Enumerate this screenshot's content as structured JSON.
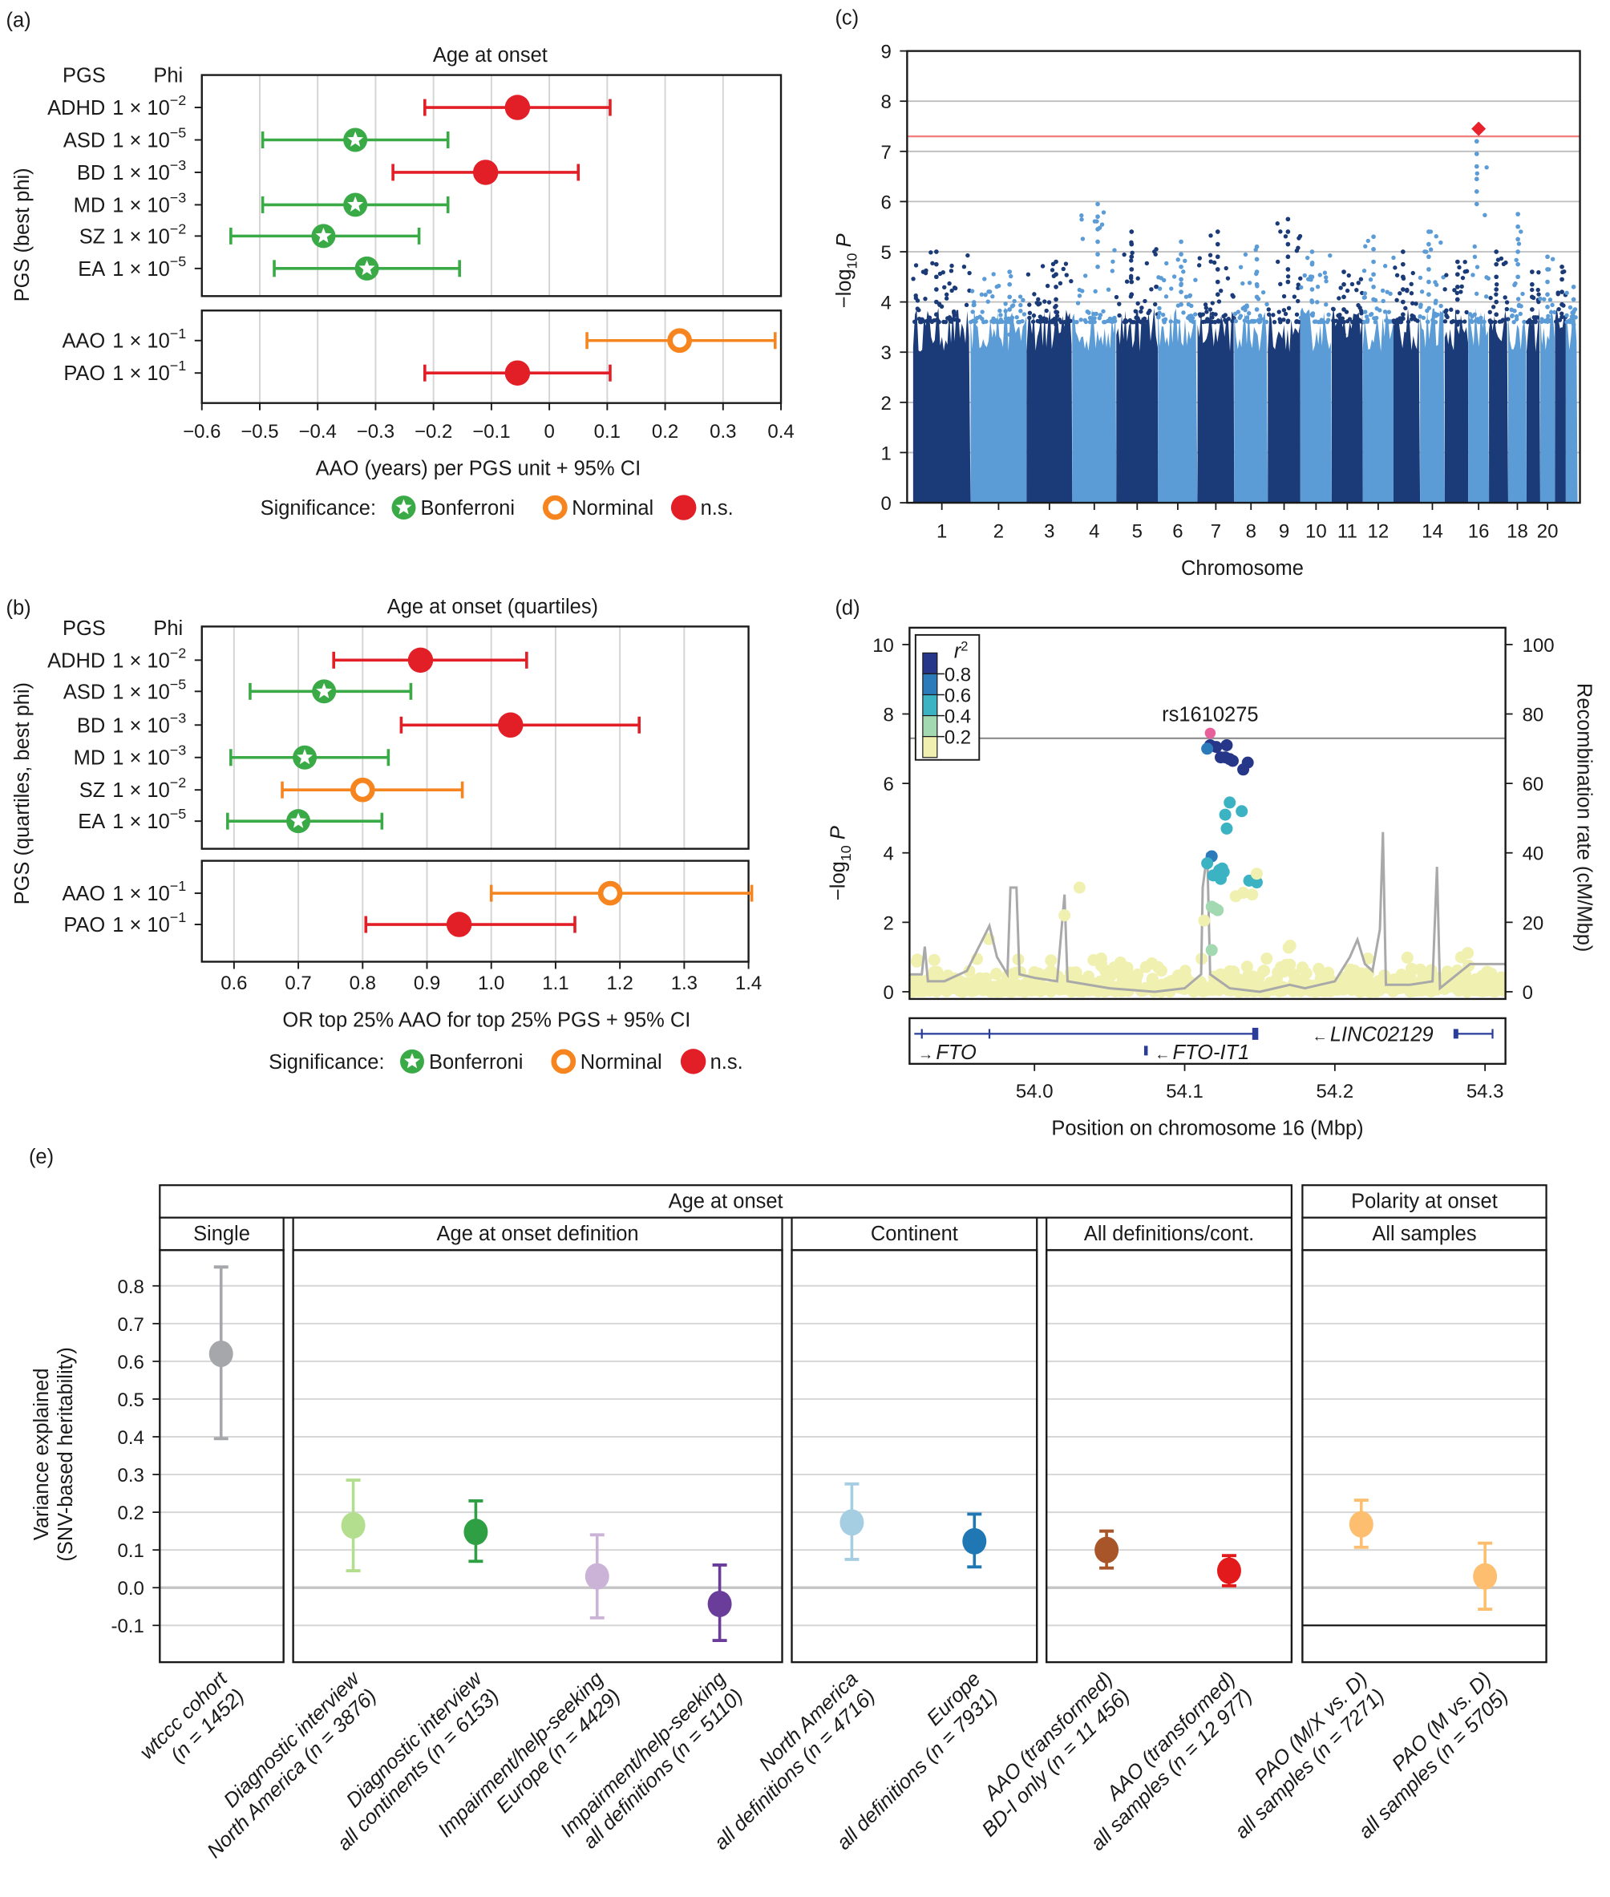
{
  "panel_labels": {
    "a": "(a)",
    "b": "(b)",
    "c": "(c)",
    "d": "(d)",
    "e": "(e)"
  },
  "significance_colors": {
    "Bonferroni": "#3aaa47",
    "Norminal": "#f7851f",
    "n.s.": "#e21f26"
  },
  "chart_data": [
    {
      "id": "a",
      "type": "forest",
      "title": "Age at onset",
      "header_pgs": "PGS",
      "header_phi": "Phi",
      "ylabel": "PGS (best phi)",
      "xlabel": "AAO (years) per PGS unit + 95% CI",
      "xlim": [
        -0.6,
        0.4
      ],
      "xticks": [
        -0.6,
        -0.5,
        -0.4,
        -0.3,
        -0.2,
        -0.1,
        0,
        0.1,
        0.2,
        0.3,
        0.4
      ],
      "xtick_labels": [
        "−0.6",
        "−0.5",
        "−0.4",
        "−0.3",
        "−0.2",
        "−0.1",
        "0",
        "0.1",
        "0.2",
        "0.3",
        "0.4"
      ],
      "grid": true,
      "groups": [
        {
          "rows": [
            {
              "pgs": "ADHD",
              "phi": "1 × 10",
              "exp": "−2",
              "estimate": -0.055,
              "ci_low": -0.215,
              "ci_high": 0.105,
              "significance": "n.s."
            },
            {
              "pgs": "ASD",
              "phi": "1 × 10",
              "exp": "−5",
              "estimate": -0.335,
              "ci_low": -0.495,
              "ci_high": -0.175,
              "significance": "Bonferroni"
            },
            {
              "pgs": "BD",
              "phi": "1 × 10",
              "exp": "−3",
              "estimate": -0.11,
              "ci_low": -0.27,
              "ci_high": 0.05,
              "significance": "n.s."
            },
            {
              "pgs": "MD",
              "phi": "1 × 10",
              "exp": "−3",
              "estimate": -0.335,
              "ci_low": -0.495,
              "ci_high": -0.175,
              "significance": "Bonferroni"
            },
            {
              "pgs": "SZ",
              "phi": "1 × 10",
              "exp": "−2",
              "estimate": -0.39,
              "ci_low": -0.55,
              "ci_high": -0.225,
              "significance": "Bonferroni"
            },
            {
              "pgs": "EA",
              "phi": "1 × 10",
              "exp": "−5",
              "estimate": -0.315,
              "ci_low": -0.475,
              "ci_high": -0.155,
              "significance": "Bonferroni"
            }
          ]
        },
        {
          "rows": [
            {
              "pgs": "AAO",
              "phi": "1 × 10",
              "exp": "−1",
              "estimate": 0.225,
              "ci_low": 0.065,
              "ci_high": 0.39,
              "significance": "Norminal"
            },
            {
              "pgs": "PAO",
              "phi": "1 × 10",
              "exp": "−1",
              "estimate": -0.055,
              "ci_low": -0.215,
              "ci_high": 0.105,
              "significance": "n.s."
            }
          ]
        }
      ],
      "legend": {
        "title": "Significance:",
        "placement": "bottom",
        "items": [
          "Bonferroni",
          "Norminal",
          "n.s."
        ]
      }
    },
    {
      "id": "b",
      "type": "forest",
      "title": "Age at onset (quartiles)",
      "header_pgs": "PGS",
      "header_phi": "Phi",
      "ylabel": "PGS (quartiles, best phi)",
      "xlabel": "OR top 25% AAO for top 25% PGS + 95% CI",
      "xlim": [
        0.55,
        1.4
      ],
      "xticks": [
        0.6,
        0.7,
        0.8,
        0.9,
        1.0,
        1.1,
        1.2,
        1.3,
        1.4
      ],
      "xtick_labels": [
        "0.6",
        "0.7",
        "0.8",
        "0.9",
        "1.0",
        "1.1",
        "1.2",
        "1.3",
        "1.4"
      ],
      "grid": true,
      "groups": [
        {
          "rows": [
            {
              "pgs": "ADHD",
              "phi": "1 × 10",
              "exp": "−2",
              "estimate": 0.89,
              "ci_low": 0.755,
              "ci_high": 1.055,
              "significance": "n.s."
            },
            {
              "pgs": "ASD",
              "phi": "1 × 10",
              "exp": "−5",
              "estimate": 0.74,
              "ci_low": 0.625,
              "ci_high": 0.875,
              "significance": "Bonferroni"
            },
            {
              "pgs": "BD",
              "phi": "1 × 10",
              "exp": "−3",
              "estimate": 1.03,
              "ci_low": 0.86,
              "ci_high": 1.23,
              "significance": "n.s."
            },
            {
              "pgs": "MD",
              "phi": "1 × 10",
              "exp": "−3",
              "estimate": 0.71,
              "ci_low": 0.595,
              "ci_high": 0.84,
              "significance": "Bonferroni"
            },
            {
              "pgs": "SZ",
              "phi": "1 × 10",
              "exp": "−2",
              "estimate": 0.8,
              "ci_low": 0.675,
              "ci_high": 0.955,
              "significance": "Norminal"
            },
            {
              "pgs": "EA",
              "phi": "1 × 10",
              "exp": "−5",
              "estimate": 0.7,
              "ci_low": 0.59,
              "ci_high": 0.83,
              "significance": "Bonferroni"
            }
          ]
        },
        {
          "rows": [
            {
              "pgs": "AAO",
              "phi": "1 × 10",
              "exp": "−1",
              "estimate": 1.185,
              "ci_low": 1.0,
              "ci_high": 1.405,
              "significance": "Norminal"
            },
            {
              "pgs": "PAO",
              "phi": "1 × 10",
              "exp": "−1",
              "estimate": 0.95,
              "ci_low": 0.805,
              "ci_high": 1.13,
              "significance": "n.s."
            }
          ]
        }
      ],
      "legend": {
        "title": "Significance:",
        "placement": "bottom",
        "items": [
          "Bonferroni",
          "Norminal",
          "n.s."
        ]
      }
    },
    {
      "id": "c",
      "type": "scatter",
      "subtype": "manhattan",
      "ylabel": {
        "main": "−log",
        "sub": "10",
        "var": " P"
      },
      "xlabel": "Chromosome",
      "ylim": [
        0,
        9
      ],
      "yticks": [
        0,
        1,
        2,
        3,
        4,
        5,
        6,
        7,
        8,
        9
      ],
      "ytick_labels": [
        "0",
        "1",
        "2",
        "3",
        "4",
        "5",
        "6",
        "7",
        "8",
        "9"
      ],
      "grid": true,
      "xtick_chromosomes": [
        1,
        2,
        3,
        4,
        5,
        6,
        7,
        8,
        9,
        10,
        11,
        12,
        14,
        16,
        18,
        20
      ],
      "xtick_labels": [
        "1",
        "2",
        "3",
        "4",
        "5",
        "6",
        "7",
        "8",
        "9",
        "10",
        "11",
        "12",
        "14",
        "16",
        "18",
        "20"
      ],
      "chromosome_peaks": [
        5.0,
        4.6,
        4.8,
        5.95,
        5.4,
        5.2,
        5.4,
        5.1,
        5.65,
        5.0,
        4.6,
        5.3,
        5.0,
        5.4,
        4.8,
        7.2,
        5.0,
        5.75,
        4.6,
        4.9,
        4.7,
        4.3
      ],
      "genome_wide_threshold": 7.3,
      "top_hit": {
        "chromosome": 16,
        "value": 7.45
      },
      "colors": {
        "odd": "#1b3a78",
        "even": "#5b9bd6",
        "threshold": "#f08080",
        "top_hit": "#e8212b"
      }
    },
    {
      "id": "d",
      "type": "scatter",
      "subtype": "regional",
      "ylabel": {
        "main": "−log",
        "sub": "10",
        "var": " P"
      },
      "y2label": "Recombination rate (cM/Mbp)",
      "xlabel": "Position on chromosome 16 (Mbp)",
      "xlim": [
        53.917,
        54.314
      ],
      "xticks": [
        54.0,
        54.1,
        54.2,
        54.3
      ],
      "xtick_labels": [
        "54.0",
        "54.1",
        "54.2",
        "54.3"
      ],
      "ylim": [
        0,
        10
      ],
      "yticks": [
        0,
        2,
        4,
        6,
        8,
        10
      ],
      "ytick_labels": [
        "0",
        "2",
        "4",
        "6",
        "8",
        "10"
      ],
      "y2lim": [
        0,
        100
      ],
      "y2ticks": [
        0,
        20,
        40,
        60,
        80,
        100
      ],
      "y2tick_labels": [
        "0",
        "20",
        "40",
        "60",
        "80",
        "100"
      ],
      "threshold": 7.3,
      "lead_snp": {
        "label": "rs1610275",
        "position": 54.117,
        "value": 7.45,
        "color": "#e8609a"
      },
      "legend": {
        "title": "r",
        "title_sup": "2",
        "placement": "top-left",
        "tick_labels": [
          "0.8",
          "0.6",
          "0.4",
          "0.2"
        ],
        "colors": [
          "#26378a",
          "#2b7bba",
          "#3bb3c3",
          "#a3d9b1",
          "#f0f0b0"
        ]
      },
      "ld_points": [
        {
          "position": 54.117,
          "value": 7.1,
          "r2_bin": 0
        },
        {
          "position": 54.121,
          "value": 7.05,
          "r2_bin": 0
        },
        {
          "position": 54.128,
          "value": 7.1,
          "r2_bin": 0
        },
        {
          "position": 54.124,
          "value": 6.75,
          "r2_bin": 0
        },
        {
          "position": 54.127,
          "value": 6.75,
          "r2_bin": 0
        },
        {
          "position": 54.13,
          "value": 6.7,
          "r2_bin": 0
        },
        {
          "position": 54.132,
          "value": 6.65,
          "r2_bin": 0
        },
        {
          "position": 54.142,
          "value": 6.6,
          "r2_bin": 0
        },
        {
          "position": 54.139,
          "value": 6.4,
          "r2_bin": 0
        },
        {
          "position": 54.115,
          "value": 7.0,
          "r2_bin": 1
        },
        {
          "position": 54.118,
          "value": 3.9,
          "r2_bin": 1
        },
        {
          "position": 54.13,
          "value": 5.45,
          "r2_bin": 2
        },
        {
          "position": 54.127,
          "value": 5.1,
          "r2_bin": 2
        },
        {
          "position": 54.138,
          "value": 5.2,
          "r2_bin": 2
        },
        {
          "position": 54.128,
          "value": 4.7,
          "r2_bin": 2
        },
        {
          "position": 54.115,
          "value": 3.7,
          "r2_bin": 2
        },
        {
          "position": 54.119,
          "value": 3.35,
          "r2_bin": 2
        },
        {
          "position": 54.123,
          "value": 3.5,
          "r2_bin": 2
        },
        {
          "position": 54.125,
          "value": 3.55,
          "r2_bin": 2
        },
        {
          "position": 54.126,
          "value": 3.45,
          "r2_bin": 2
        },
        {
          "position": 54.124,
          "value": 3.25,
          "r2_bin": 2
        },
        {
          "position": 54.143,
          "value": 3.2,
          "r2_bin": 2
        },
        {
          "position": 54.148,
          "value": 3.15,
          "r2_bin": 2
        },
        {
          "position": 54.118,
          "value": 2.45,
          "r2_bin": 3
        },
        {
          "position": 54.12,
          "value": 2.4,
          "r2_bin": 3
        },
        {
          "position": 54.122,
          "value": 2.35,
          "r2_bin": 3
        },
        {
          "position": 54.118,
          "value": 1.2,
          "r2_bin": 3
        },
        {
          "position": 54.148,
          "value": 3.4,
          "r2_bin": 4
        },
        {
          "position": 54.134,
          "value": 2.75,
          "r2_bin": 4
        },
        {
          "position": 54.139,
          "value": 2.85,
          "r2_bin": 4
        },
        {
          "position": 54.145,
          "value": 2.8,
          "r2_bin": 4
        },
        {
          "position": 54.03,
          "value": 3.0,
          "r2_bin": 4
        },
        {
          "position": 54.02,
          "value": 2.2,
          "r2_bin": 4
        },
        {
          "position": 54.113,
          "value": 2.05,
          "r2_bin": 4
        }
      ],
      "recombination_rate": [
        [
          53.917,
          5
        ],
        [
          53.925,
          5
        ],
        [
          53.927,
          13
        ],
        [
          53.929,
          3
        ],
        [
          53.94,
          3
        ],
        [
          53.955,
          6
        ],
        [
          53.97,
          19
        ],
        [
          53.975,
          10
        ],
        [
          53.982,
          5
        ],
        [
          53.984,
          30
        ],
        [
          53.988,
          30
        ],
        [
          53.99,
          5
        ],
        [
          54.0,
          4
        ],
        [
          54.015,
          3
        ],
        [
          54.02,
          28
        ],
        [
          54.022,
          3
        ],
        [
          54.05,
          1
        ],
        [
          54.08,
          0
        ],
        [
          54.1,
          1
        ],
        [
          54.111,
          5
        ],
        [
          54.112,
          30
        ],
        [
          54.115,
          40
        ],
        [
          54.117,
          5
        ],
        [
          54.13,
          1
        ],
        [
          54.15,
          0
        ],
        [
          54.17,
          2
        ],
        [
          54.18,
          1
        ],
        [
          54.2,
          3
        ],
        [
          54.21,
          10
        ],
        [
          54.215,
          15
        ],
        [
          54.22,
          8
        ],
        [
          54.225,
          6
        ],
        [
          54.23,
          18
        ],
        [
          54.232,
          46
        ],
        [
          54.234,
          2
        ],
        [
          54.25,
          2
        ],
        [
          54.265,
          3
        ],
        [
          54.268,
          36
        ],
        [
          54.27,
          1
        ],
        [
          54.29,
          8
        ],
        [
          54.314,
          8
        ]
      ],
      "genes": [
        {
          "name": "FTO",
          "arrow": "→",
          "start": 53.917,
          "end": 54.148,
          "strand": "+"
        },
        {
          "name": "FTO-IT1",
          "arrow": "←",
          "start": 54.073,
          "end": 54.075,
          "strand": "-"
        },
        {
          "name": "LINC02129",
          "arrow": "←",
          "start": 54.28,
          "end": 54.305,
          "strand": "-"
        }
      ]
    },
    {
      "id": "e",
      "type": "scatter",
      "subtype": "point-range-faceted",
      "ylabel": [
        "Variance explained",
        "(SNV-based heritability)"
      ],
      "ylim": [
        -0.135,
        0.9
      ],
      "yticks": [
        -0.1,
        0.0,
        0.1,
        0.2,
        0.3,
        0.4,
        0.5,
        0.6,
        0.7,
        0.8
      ],
      "ytick_labels": [
        "-0.1",
        "0.0",
        "0.1",
        "0.2",
        "0.3",
        "0.4",
        "0.5",
        "0.6",
        "0.7",
        "0.8"
      ],
      "grid": true,
      "facets_top": [
        {
          "label": "Age at onset"
        },
        {
          "label": "Polarity at onset"
        }
      ],
      "facets": [
        {
          "label": "Single",
          "items": [
            {
              "line1": "wtccc cohort",
              "line2": "(n = 1452)",
              "value": 0.62,
              "ci_low": 0.395,
              "ci_high": 0.85,
              "color": "#a6a7ab"
            }
          ]
        },
        {
          "label": "Age at onset definition",
          "items": [
            {
              "line1": "Diagnostic interview",
              "line2": "North America (n = 3876)",
              "value": 0.165,
              "ci_low": 0.045,
              "ci_high": 0.285,
              "color": "#b2de8e"
            },
            {
              "line1": "Diagnostic interview",
              "line2": "all continents (n = 6153)",
              "value": 0.148,
              "ci_low": 0.07,
              "ci_high": 0.23,
              "color": "#2ea043"
            },
            {
              "line1": "Impairment/help-seeking",
              "line2": "Europe (n = 4429)",
              "value": 0.03,
              "ci_low": -0.08,
              "ci_high": 0.14,
              "color": "#cbb3d8"
            },
            {
              "line1": "Impairment/help-seeking",
              "line2": "all definitions (n = 5110)",
              "value": -0.043,
              "ci_low": -0.14,
              "ci_high": 0.06,
              "color": "#6a3d9a"
            }
          ]
        },
        {
          "label": "Continent",
          "items": [
            {
              "line1": "North America",
              "line2": "all definitions (n = 4716)",
              "value": 0.173,
              "ci_low": 0.075,
              "ci_high": 0.275,
              "color": "#a6cee3"
            },
            {
              "line1": "Europe",
              "line2": "all definitions (n = 7931)",
              "value": 0.123,
              "ci_low": 0.055,
              "ci_high": 0.195,
              "color": "#1f78b4"
            }
          ]
        },
        {
          "label": "All definitions/cont.",
          "items": [
            {
              "line1": "AAO (transformed)",
              "line2": "BD-I only (n = 11 456)",
              "value": 0.1,
              "ci_low": 0.052,
              "ci_high": 0.15,
              "color": "#a8552a"
            },
            {
              "line1": "AAO (transformed)",
              "line2": "all samples (n = 12 977)",
              "value": 0.045,
              "ci_low": 0.005,
              "ci_high": 0.085,
              "color": "#e31a1c"
            }
          ]
        },
        {
          "label": "All samples",
          "items": [
            {
              "line1": "PAO (M/X vs. D)",
              "line2": "all samples (n = 7271)",
              "value": 0.168,
              "ci_low": 0.107,
              "ci_high": 0.232,
              "color": "#fdbf6f"
            },
            {
              "line1": "PAO (M vs. D)",
              "line2": "all samples (n = 5705)",
              "value": 0.03,
              "ci_low": -0.057,
              "ci_high": 0.118,
              "color": "#fdbf6f"
            }
          ]
        }
      ]
    }
  ]
}
